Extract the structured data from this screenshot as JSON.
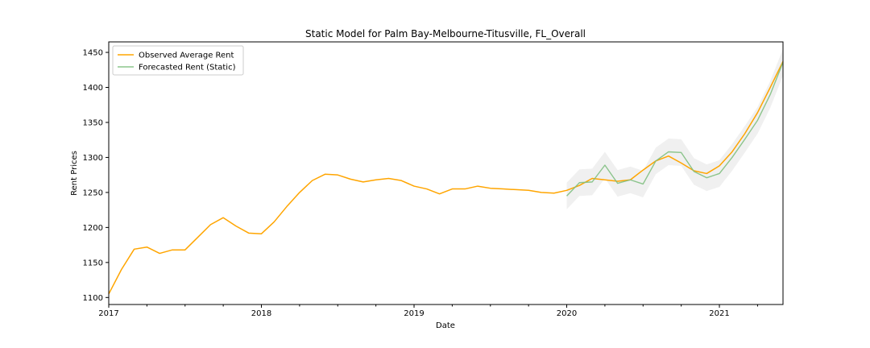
{
  "chart_data": {
    "type": "line",
    "title": "Static Model for Palm Bay-Melbourne-Titusville, FL_Overall",
    "xlabel": "Date",
    "ylabel": "Rent Prices",
    "xlim": [
      "2017-01",
      "2021-06"
    ],
    "ylim": [
      1090,
      1465
    ],
    "x_ticks": [
      "2017",
      "2018",
      "2019",
      "2020",
      "2021"
    ],
    "y_ticks": [
      1100,
      1150,
      1200,
      1250,
      1300,
      1350,
      1400,
      1450
    ],
    "grid": false,
    "legend_position": "upper-left",
    "series": [
      {
        "name": "Observed Average Rent",
        "color": "#ffa500",
        "x": [
          "2017-01",
          "2017-02",
          "2017-03",
          "2017-04",
          "2017-05",
          "2017-06",
          "2017-07",
          "2017-08",
          "2017-09",
          "2017-10",
          "2017-11",
          "2017-12",
          "2018-01",
          "2018-02",
          "2018-03",
          "2018-04",
          "2018-05",
          "2018-06",
          "2018-07",
          "2018-08",
          "2018-09",
          "2018-10",
          "2018-11",
          "2018-12",
          "2019-01",
          "2019-02",
          "2019-03",
          "2019-04",
          "2019-05",
          "2019-06",
          "2019-07",
          "2019-08",
          "2019-09",
          "2019-10",
          "2019-11",
          "2019-12",
          "2020-01",
          "2020-02",
          "2020-03",
          "2020-04",
          "2020-05",
          "2020-06",
          "2020-07",
          "2020-08",
          "2020-09",
          "2020-10",
          "2020-11",
          "2020-12",
          "2021-01",
          "2021-02",
          "2021-03",
          "2021-04",
          "2021-05",
          "2021-06"
        ],
        "values": [
          1105,
          1140,
          1169,
          1172,
          1163,
          1168,
          1168,
          1186,
          1204,
          1214,
          1202,
          1192,
          1191,
          1208,
          1230,
          1250,
          1267,
          1276,
          1275,
          1269,
          1265,
          1268,
          1270,
          1267,
          1259,
          1255,
          1248,
          1255,
          1255,
          1259,
          1256,
          1255,
          1254,
          1253,
          1250,
          1249,
          1253,
          1260,
          1270,
          1268,
          1266,
          1268,
          1282,
          1295,
          1302,
          1292,
          1281,
          1277,
          1288,
          1308,
          1334,
          1364,
          1400,
          1437
        ]
      },
      {
        "name": "Forecasted Rent (Static)",
        "color": "#7fbf7f",
        "x": [
          "2020-01",
          "2020-02",
          "2020-03",
          "2020-04",
          "2020-05",
          "2020-06",
          "2020-07",
          "2020-08",
          "2020-09",
          "2020-10",
          "2020-11",
          "2020-12",
          "2021-01",
          "2021-02",
          "2021-03",
          "2021-04",
          "2021-05",
          "2021-06"
        ],
        "values": [
          1245,
          1264,
          1265,
          1289,
          1263,
          1268,
          1262,
          1295,
          1308,
          1307,
          1280,
          1271,
          1277,
          1300,
          1326,
          1353,
          1390,
          1436
        ],
        "lower": [
          1226,
          1245,
          1246,
          1270,
          1244,
          1249,
          1243,
          1276,
          1289,
          1288,
          1261,
          1252,
          1258,
          1281,
          1307,
          1334,
          1371,
          1417
        ],
        "upper": [
          1264,
          1283,
          1284,
          1308,
          1282,
          1287,
          1281,
          1314,
          1327,
          1326,
          1299,
          1290,
          1296,
          1319,
          1345,
          1372,
          1409,
          1455
        ]
      }
    ]
  }
}
